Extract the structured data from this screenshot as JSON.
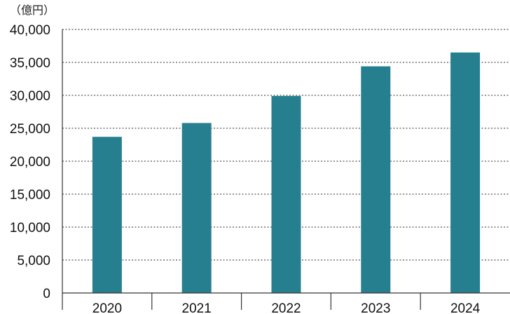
{
  "chart_data": {
    "type": "bar",
    "unit_label": "（億円）",
    "categories": [
      "2020",
      "2021",
      "2022",
      "2023",
      "2024"
    ],
    "values": [
      23700,
      25800,
      29900,
      34400,
      36500
    ],
    "ylim": [
      0,
      40000
    ],
    "yticks": [
      0,
      5000,
      10000,
      15000,
      20000,
      25000,
      30000,
      35000,
      40000
    ],
    "ytick_labels": [
      "0",
      "5,000",
      "10,000",
      "15,000",
      "20,000",
      "25,000",
      "30,000",
      "35,000",
      "40,000"
    ],
    "grid": true,
    "bar_color": "#267f8f",
    "grid_color": "#555555"
  }
}
